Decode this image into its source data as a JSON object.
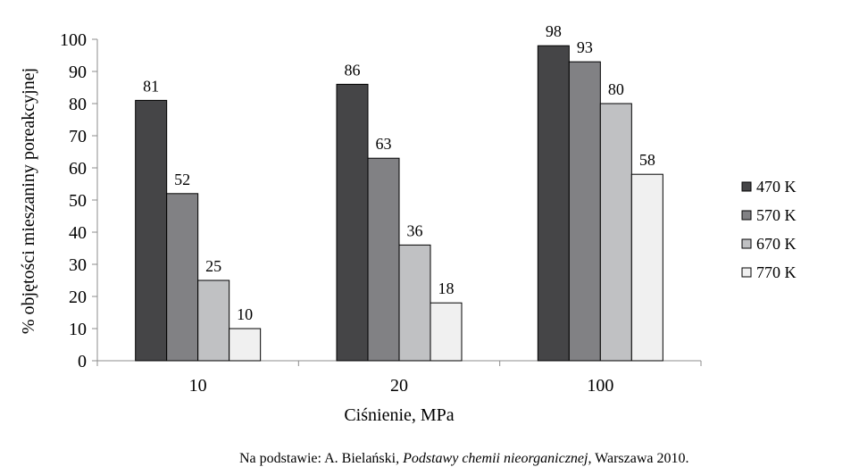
{
  "chart_data": {
    "type": "bar",
    "categories": [
      "10",
      "20",
      "100"
    ],
    "series": [
      {
        "name": "470 K",
        "values": [
          81,
          86,
          98
        ],
        "color": "#454547"
      },
      {
        "name": "570 K",
        "values": [
          52,
          63,
          93
        ],
        "color": "#818184"
      },
      {
        "name": "670 K",
        "values": [
          25,
          36,
          80
        ],
        "color": "#c0c1c3"
      },
      {
        "name": "770 K",
        "values": [
          10,
          18,
          58
        ],
        "color": "#f0f0f0"
      }
    ],
    "title": "",
    "xlabel": "Ciśnienie, MPa",
    "ylabel": "% objętości mieszaniny poreakcyjnej",
    "ylim": [
      0,
      100
    ],
    "yticks": [
      0,
      10,
      20,
      30,
      40,
      50,
      60,
      70,
      80,
      90,
      100
    ],
    "data_labels": true,
    "grid": false,
    "legend_position": "right"
  },
  "source": {
    "prefix": "Na podstawie: A. Bielański, ",
    "title": "Podstawy chemii nieorganicznej",
    "suffix": ", Warszawa 2010."
  }
}
